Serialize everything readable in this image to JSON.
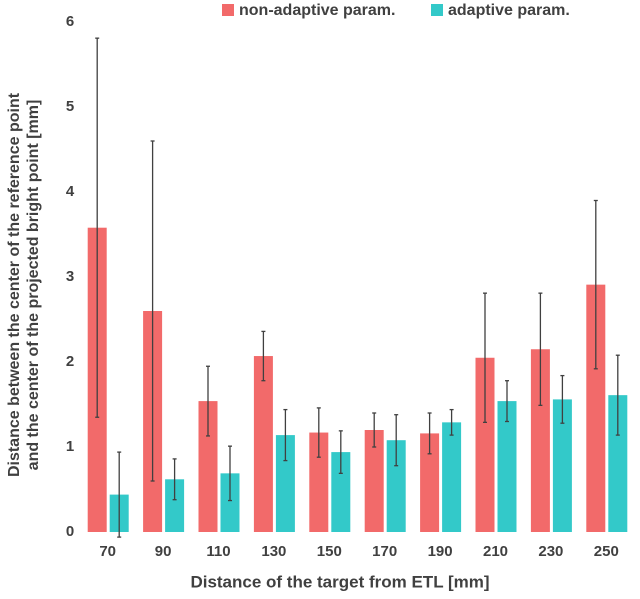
{
  "chart_data": {
    "type": "bar",
    "xlabel": "Distance of the target from ETL [mm]",
    "ylabel": [
      "Distance between the center of the reference point",
      "and the center of the projected bright point [mm]"
    ],
    "categories": [
      "70",
      "90",
      "110",
      "130",
      "150",
      "170",
      "190",
      "210",
      "230",
      "250"
    ],
    "series": [
      {
        "name": "non-adaptive param.",
        "color": "#f26a6a",
        "values": [
          3.58,
          2.6,
          1.54,
          2.07,
          1.17,
          1.2,
          1.16,
          2.05,
          2.15,
          2.91
        ],
        "errors": [
          2.23,
          2.0,
          0.41,
          0.29,
          0.29,
          0.2,
          0.24,
          0.76,
          0.66,
          0.99
        ]
      },
      {
        "name": "adaptive param.",
        "color": "#33c9c9",
        "values": [
          0.44,
          0.62,
          0.69,
          1.14,
          0.94,
          1.08,
          1.29,
          1.54,
          1.56,
          1.61
        ],
        "errors": [
          0.5,
          0.24,
          0.32,
          0.3,
          0.25,
          0.3,
          0.15,
          0.24,
          0.28,
          0.47
        ]
      }
    ],
    "ylim": [
      0,
      6
    ],
    "yticks": [
      0,
      1,
      2,
      3,
      4,
      5,
      6
    ],
    "grid": false,
    "legend": "top"
  }
}
